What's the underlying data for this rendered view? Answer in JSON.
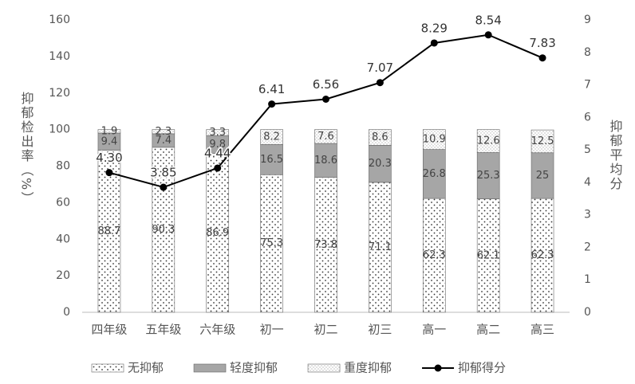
{
  "chart_data": {
    "type": "bar",
    "stacked": true,
    "categories": [
      "四年级",
      "五年级",
      "六年级",
      "初一",
      "初二",
      "初三",
      "高一",
      "高二",
      "高三"
    ],
    "y_label": "抑郁检出率（%）",
    "y2_label": "抑郁平均分",
    "ylim": [
      0,
      160
    ],
    "yticks": [
      0,
      20,
      40,
      60,
      80,
      100,
      120,
      140,
      160
    ],
    "y2lim": [
      0,
      9
    ],
    "y2ticks": [
      0,
      1,
      2,
      3,
      4,
      5,
      6,
      7,
      8,
      9
    ],
    "legend": "bottom",
    "series": [
      {
        "name": "无抑郁",
        "color": "#ffffff",
        "pattern": "dots",
        "values": [
          88.7,
          90.3,
          86.9,
          75.3,
          73.8,
          71.1,
          62.3,
          62.1,
          62.3
        ]
      },
      {
        "name": "轻度抑郁",
        "color": "#a6a6a6",
        "values": [
          9.4,
          7.4,
          9.8,
          16.5,
          18.6,
          20.3,
          26.8,
          25.3,
          25
        ]
      },
      {
        "name": "重度抑郁",
        "color": "#ffffff",
        "pattern": "fine-dots",
        "values": [
          1.9,
          2.3,
          3.3,
          8.2,
          7.6,
          8.6,
          10.9,
          12.6,
          12.5
        ]
      },
      {
        "name": "抑郁得分",
        "type": "line",
        "axis": "y2",
        "color": "#000000",
        "values": [
          4.3,
          3.85,
          4.44,
          6.41,
          6.56,
          7.07,
          8.29,
          8.54,
          7.83
        ],
        "value_labels": [
          "4.30",
          "3.85",
          "4.44",
          "6.41",
          "6.56",
          "7.07",
          "8.29",
          "8.54",
          "7.83"
        ]
      }
    ]
  }
}
